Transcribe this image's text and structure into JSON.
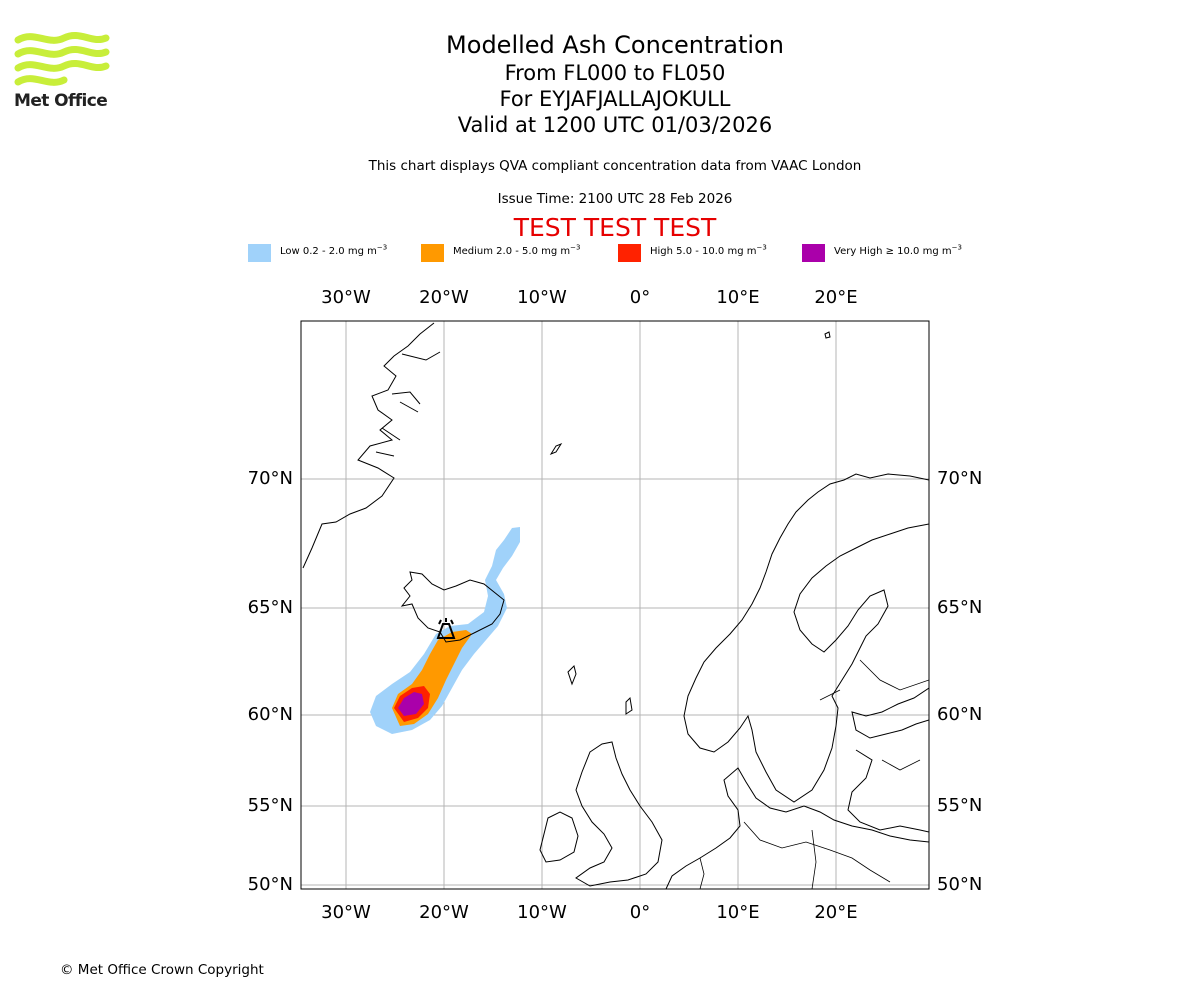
{
  "logo": {
    "text": "Met Office",
    "color": "#c8ee3a"
  },
  "title": {
    "main": "Modelled Ash Concentration",
    "levels": "From FL000 to FL050",
    "volcano": "For EYJAFJALLAJOKULL",
    "valid": "Valid at 1200 UTC 01/03/2026"
  },
  "subtitle": "This chart displays QVA compliant concentration data from VAAC London",
  "issue_time": "Issue Time: 2100 UTC 28 Feb 2026",
  "test_banner": "TEST TEST TEST",
  "legend": [
    {
      "label": "Low 0.2 - 2.0 mg m",
      "exp": "−3",
      "color": "#a0d2fa"
    },
    {
      "label": "Medium 2.0 - 5.0 mg m",
      "exp": "−3",
      "color": "#ff9900"
    },
    {
      "label": "High 5.0 - 10.0 mg m",
      "exp": "−3",
      "color": "#ff2200"
    },
    {
      "label": "Very High  ≥  10.0 mg m",
      "exp": "−3",
      "color": "#aa00aa"
    }
  ],
  "map": {
    "lon_range": [
      -35,
      29
    ],
    "lat_range": [
      50,
      76
    ],
    "lon_ticks": [
      {
        "lon": -30,
        "label": "30°W"
      },
      {
        "lon": -20,
        "label": "20°W"
      },
      {
        "lon": -10,
        "label": "10°W"
      },
      {
        "lon": 0,
        "label": "0°"
      },
      {
        "lon": 10,
        "label": "10°E"
      },
      {
        "lon": 20,
        "label": "20°E"
      }
    ],
    "lat_ticks": [
      {
        "lat": 70,
        "label": "70°N"
      },
      {
        "lat": 65,
        "label": "65°N"
      },
      {
        "lat": 60,
        "label": "60°N"
      },
      {
        "lat": 55,
        "label": "55°N"
      },
      {
        "lat": 50,
        "label": "50°N"
      }
    ],
    "gridlines": true,
    "volcano": {
      "name": "Eyjafjallajokull",
      "lon": -19.6,
      "lat": 63.6
    }
  },
  "footer": "© Met Office Crown Copyright"
}
